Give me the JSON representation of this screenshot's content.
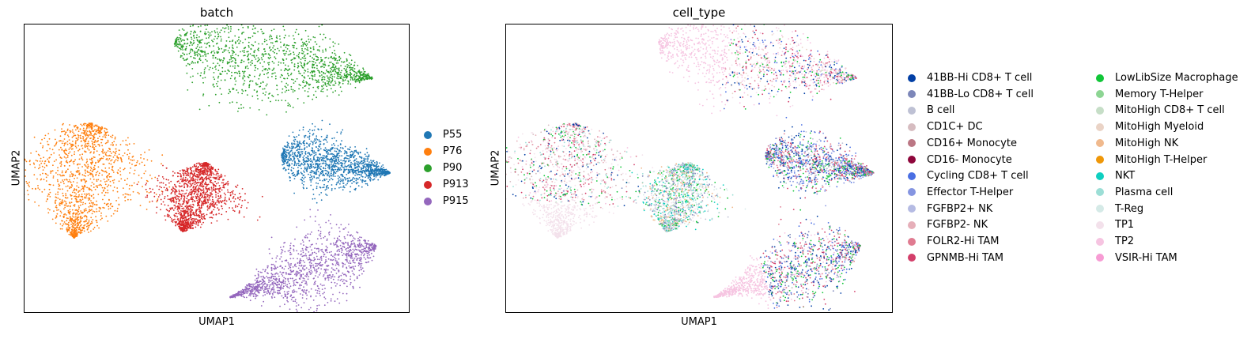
{
  "chart_data": [
    {
      "type": "scatter",
      "title": "batch",
      "xlabel": "UMAP1",
      "ylabel": "UMAP2",
      "legend_placement": "right",
      "series": [
        {
          "name": "P55",
          "color": "#1f77b4"
        },
        {
          "name": "P76",
          "color": "#ff7f0e"
        },
        {
          "name": "P90",
          "color": "#2ca02c"
        },
        {
          "name": "P913",
          "color": "#d62728"
        },
        {
          "name": "P915",
          "color": "#9467bd"
        }
      ]
    },
    {
      "type": "scatter",
      "title": "cell_type",
      "xlabel": "UMAP1",
      "ylabel": "UMAP2",
      "legend_placement": "right",
      "series": [
        {
          "name": "41BB-Hi CD8+ T cell",
          "color": "#023fa5"
        },
        {
          "name": "41BB-Lo CD8+ T cell",
          "color": "#7d87b9"
        },
        {
          "name": "B cell",
          "color": "#bec1d4"
        },
        {
          "name": "CD1C+ DC",
          "color": "#d6bcc0"
        },
        {
          "name": "CD16+ Monocyte",
          "color": "#bb7784"
        },
        {
          "name": "CD16- Monocyte",
          "color": "#8e063b"
        },
        {
          "name": "Cycling CD8+ T cell",
          "color": "#4a6fe3"
        },
        {
          "name": "Effector T-Helper",
          "color": "#8595e1"
        },
        {
          "name": "FGFBP2+ NK",
          "color": "#b5bbe3"
        },
        {
          "name": "FGFBP2- NK",
          "color": "#e6afb9"
        },
        {
          "name": "FOLR2-Hi TAM",
          "color": "#e07b91"
        },
        {
          "name": "GPNMB-Hi TAM",
          "color": "#d33f6a"
        },
        {
          "name": "LowLibSize Macrophage",
          "color": "#11c638"
        },
        {
          "name": "Memory T-Helper",
          "color": "#8dd593"
        },
        {
          "name": "MitoHigh CD8+ T cell",
          "color": "#c6dec7"
        },
        {
          "name": "MitoHigh Myeloid",
          "color": "#ead3c6"
        },
        {
          "name": "MitoHigh NK",
          "color": "#f0b98d"
        },
        {
          "name": "MitoHigh T-Helper",
          "color": "#ef9708"
        },
        {
          "name": "NKT",
          "color": "#0fcfc0"
        },
        {
          "name": "Plasma cell",
          "color": "#9cded6"
        },
        {
          "name": "T-Reg",
          "color": "#d5eae7"
        },
        {
          "name": "TP1",
          "color": "#f3e1eb"
        },
        {
          "name": "TP2",
          "color": "#f6c4e1"
        },
        {
          "name": "VSIR-Hi TAM",
          "color": "#f79cd4"
        }
      ]
    }
  ]
}
